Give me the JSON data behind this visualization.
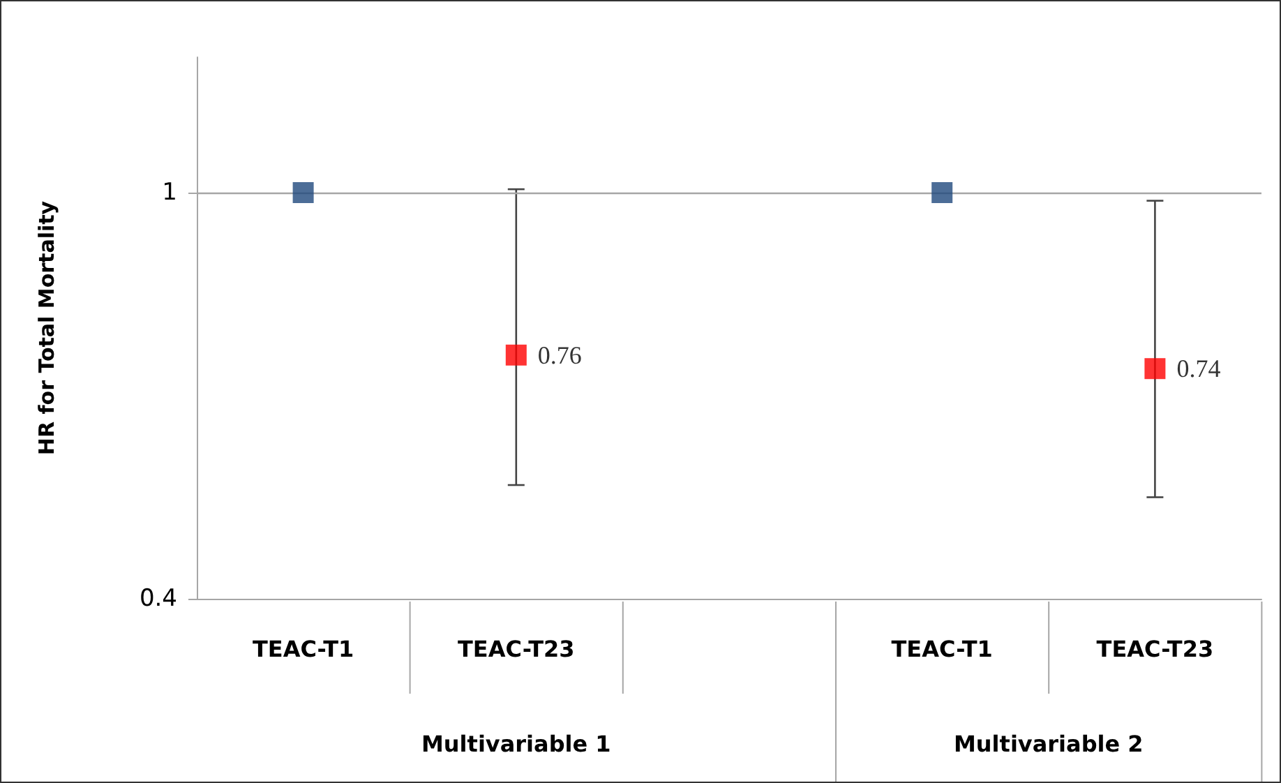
{
  "chart_data": {
    "type": "scatter",
    "ylabel": "HR for Total Mortality",
    "categories": [
      "TEAC-T1",
      "TEAC-T23",
      null,
      "TEAC-T1",
      "TEAC-T23"
    ],
    "series": [
      {
        "color": "#1f497d",
        "values": [
          1,
          null,
          null,
          1,
          null
        ]
      },
      {
        "color": "#ff0000",
        "values": [
          null,
          0.76,
          null,
          null,
          0.74
        ],
        "errors": [
          null,
          [
            0.568,
            1.005
          ],
          null,
          null,
          [
            0.55,
            0.988
          ]
        ],
        "value_labels": [
          null,
          "0.76",
          null,
          null,
          "0.74"
        ]
      }
    ],
    "annotations": [
      "Multivariable 1",
      "Multivariable 2"
    ],
    "ylim": [
      0.4,
      1.2
    ],
    "yticks": [
      0.4,
      1
    ],
    "ref_lines": [
      {
        "axis": "y",
        "value": 1,
        "label": null,
        "color": "#a6a6a6"
      }
    ],
    "marker": "square",
    "grid": false
  }
}
